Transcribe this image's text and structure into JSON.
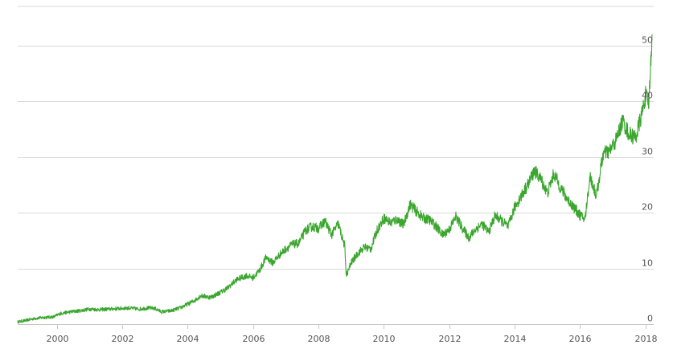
{
  "chart_data": {
    "type": "line",
    "title": "",
    "xlabel": "",
    "ylabel": "",
    "grid": true,
    "legend": "none",
    "xlim": [
      1998.8,
      2018.25
    ],
    "ylim": [
      0,
      57
    ],
    "x_ticks": [
      2000,
      2002,
      2004,
      2006,
      2008,
      2010,
      2012,
      2014,
      2016,
      2018
    ],
    "x_tick_labels": [
      "2000",
      "2002",
      "2004",
      "2006",
      "2008",
      "2010",
      "2012",
      "2014",
      "2016",
      "2018"
    ],
    "y_ticks": [
      0,
      10,
      20,
      30,
      40,
      50
    ],
    "y_tick_labels": [
      "0",
      "10",
      "20",
      "30",
      "40",
      "50"
    ],
    "colors": {
      "series": "#3aa62e",
      "grid": "#d9d9d9",
      "axis": "#c8c8c8",
      "tick_label": "#555555"
    },
    "series": [
      {
        "x": [
          1998.8,
          1999.0,
          1999.3,
          1999.6,
          1999.9,
          2000.1,
          2000.4,
          2000.7,
          2001.0,
          2001.3,
          2001.6,
          2001.9,
          2002.2,
          2002.5,
          2002.8,
          2003.0,
          2003.2,
          2003.5,
          2003.8,
          2004.0,
          2004.2,
          2004.4,
          2004.7,
          2005.0,
          2005.2,
          2005.5,
          2005.8,
          2006.0,
          2006.2,
          2006.4,
          2006.6,
          2006.8,
          2007.0,
          2007.2,
          2007.4,
          2007.6,
          2007.8,
          2008.0,
          2008.2,
          2008.4,
          2008.6,
          2008.8,
          2008.85,
          2009.0,
          2009.2,
          2009.4,
          2009.6,
          2009.8,
          2010.0,
          2010.2,
          2010.4,
          2010.6,
          2010.8,
          2011.0,
          2011.2,
          2011.4,
          2011.6,
          2011.8,
          2012.0,
          2012.2,
          2012.4,
          2012.6,
          2012.8,
          2013.0,
          2013.2,
          2013.4,
          2013.6,
          2013.8,
          2014.0,
          2014.2,
          2014.4,
          2014.6,
          2014.8,
          2015.0,
          2015.2,
          2015.4,
          2015.6,
          2015.8,
          2016.0,
          2016.15,
          2016.3,
          2016.5,
          2016.7,
          2016.9,
          2017.1,
          2017.3,
          2017.5,
          2017.7,
          2017.9,
          2018.0,
          2018.1,
          2018.2
        ],
        "y": [
          0.4,
          0.6,
          1.0,
          1.2,
          1.3,
          1.9,
          2.2,
          2.4,
          2.7,
          2.6,
          2.7,
          2.8,
          2.9,
          2.7,
          2.9,
          2.8,
          2.2,
          2.4,
          3.0,
          3.6,
          4.2,
          5.1,
          4.8,
          5.7,
          6.4,
          8.0,
          8.7,
          8.3,
          9.7,
          12.0,
          11.0,
          12.4,
          13.5,
          14.3,
          14.5,
          16.8,
          17.5,
          17.2,
          18.5,
          16.0,
          18.0,
          14.0,
          8.7,
          11.0,
          12.7,
          13.8,
          13.5,
          17.0,
          19.0,
          18.2,
          18.8,
          17.8,
          21.5,
          20.2,
          19.0,
          18.7,
          17.5,
          16.0,
          17.0,
          19.3,
          17.2,
          15.5,
          17.0,
          18.0,
          16.5,
          19.5,
          18.5,
          17.5,
          21.0,
          23.0,
          25.0,
          27.5,
          26.0,
          23.5,
          27.0,
          24.5,
          22.5,
          21.0,
          19.5,
          18.8,
          26.5,
          23.0,
          30.5,
          31.0,
          33.0,
          36.5,
          34.0,
          33.5,
          38.0,
          41.0,
          39.5,
          52.0
        ]
      }
    ]
  }
}
